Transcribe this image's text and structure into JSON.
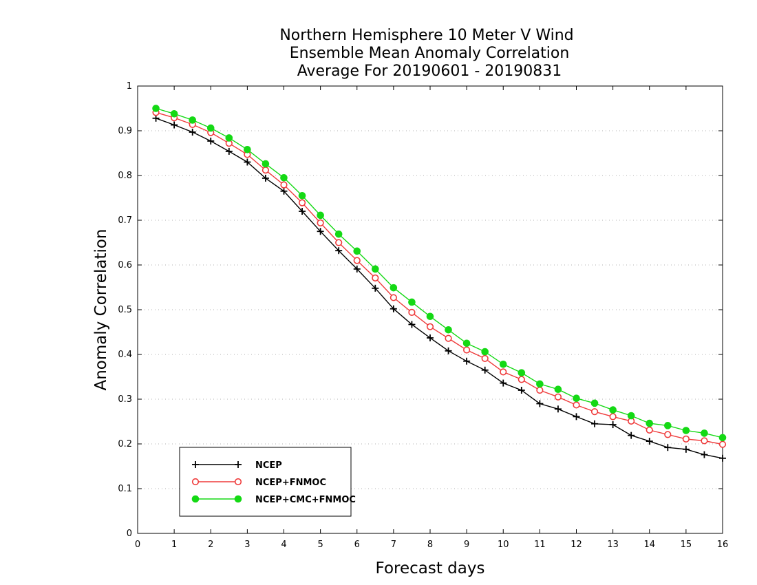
{
  "chart_data": {
    "type": "line",
    "title": [
      "Northern Hemisphere 10 Meter V Wind",
      "Ensemble Mean Anomaly Correlation",
      "Average For 20190601 - 20190831"
    ],
    "xlabel": "Forecast days",
    "ylabel": "Anomaly Correlation",
    "xlim": [
      0,
      16
    ],
    "ylim": [
      0,
      1
    ],
    "xticks": [
      0,
      1,
      2,
      3,
      4,
      5,
      6,
      7,
      8,
      9,
      10,
      11,
      12,
      13,
      14,
      15,
      16
    ],
    "xtick_labels": [
      "0",
      "1",
      "2",
      "3",
      "4",
      "5",
      "6",
      "7",
      "8",
      "9",
      "10",
      "11",
      "12",
      "13",
      "14",
      "15",
      "16"
    ],
    "yticks": [
      0,
      0.1,
      0.2,
      0.3,
      0.4,
      0.5,
      0.6,
      0.7,
      0.8,
      0.9,
      1
    ],
    "ytick_labels": [
      "0",
      "0.1",
      "0.2",
      "0.3",
      "0.4",
      "0.5",
      "0.6",
      "0.7",
      "0.8",
      "0.9",
      "1"
    ],
    "grid": "horizontal dotted",
    "legend_position": "bottom-left",
    "x": [
      0.5,
      1,
      1.5,
      2,
      2.5,
      3,
      3.5,
      4,
      4.5,
      5,
      5.5,
      6,
      6.5,
      7,
      7.5,
      8,
      8.5,
      9,
      9.5,
      10,
      10.5,
      11,
      11.5,
      12,
      12.5,
      13,
      13.5,
      14,
      14.5,
      15,
      15.5,
      16
    ],
    "series": [
      {
        "name": "NCEP",
        "color": "#000000",
        "marker": "plus",
        "values": [
          0.928,
          0.913,
          0.897,
          0.877,
          0.854,
          0.83,
          0.794,
          0.765,
          0.72,
          0.675,
          0.632,
          0.591,
          0.548,
          0.502,
          0.467,
          0.437,
          0.408,
          0.385,
          0.365,
          0.336,
          0.32,
          0.29,
          0.278,
          0.261,
          0.245,
          0.243,
          0.219,
          0.206,
          0.192,
          0.188,
          0.176,
          0.168
        ]
      },
      {
        "name": "NCEP+FNMOC",
        "color": "#ef3b3b",
        "marker": "open-circle",
        "values": [
          0.941,
          0.929,
          0.914,
          0.896,
          0.872,
          0.847,
          0.812,
          0.779,
          0.739,
          0.694,
          0.65,
          0.61,
          0.571,
          0.527,
          0.494,
          0.462,
          0.436,
          0.41,
          0.391,
          0.361,
          0.344,
          0.32,
          0.305,
          0.287,
          0.272,
          0.261,
          0.251,
          0.231,
          0.221,
          0.211,
          0.207,
          0.199
        ]
      },
      {
        "name": "NCEP+CMC+FNMOC",
        "color": "#14d914",
        "marker": "filled-circle",
        "values": [
          0.95,
          0.938,
          0.924,
          0.906,
          0.884,
          0.858,
          0.826,
          0.795,
          0.755,
          0.711,
          0.669,
          0.631,
          0.591,
          0.549,
          0.517,
          0.485,
          0.455,
          0.425,
          0.406,
          0.378,
          0.359,
          0.334,
          0.322,
          0.302,
          0.291,
          0.276,
          0.263,
          0.246,
          0.241,
          0.23,
          0.224,
          0.214
        ]
      }
    ]
  }
}
